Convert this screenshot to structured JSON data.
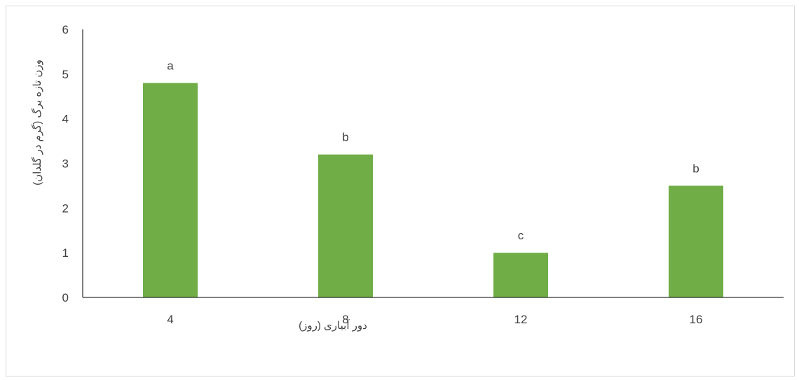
{
  "chart_data": {
    "type": "bar",
    "title": "",
    "xlabel": "دور آبیاری (روز)",
    "ylabel": "وزن تازه برگ (گرم در گلدان)",
    "categories": [
      "4",
      "8",
      "12",
      "16"
    ],
    "values": [
      4.8,
      3.2,
      1.0,
      2.5
    ],
    "data_labels": [
      "a",
      "b",
      "c",
      "b"
    ],
    "ylim": [
      0,
      6
    ],
    "yticks": [
      "0",
      "1",
      "2",
      "3",
      "4",
      "5",
      "6"
    ],
    "grid": false,
    "legend": "none",
    "bar_color": "#70ad47"
  }
}
